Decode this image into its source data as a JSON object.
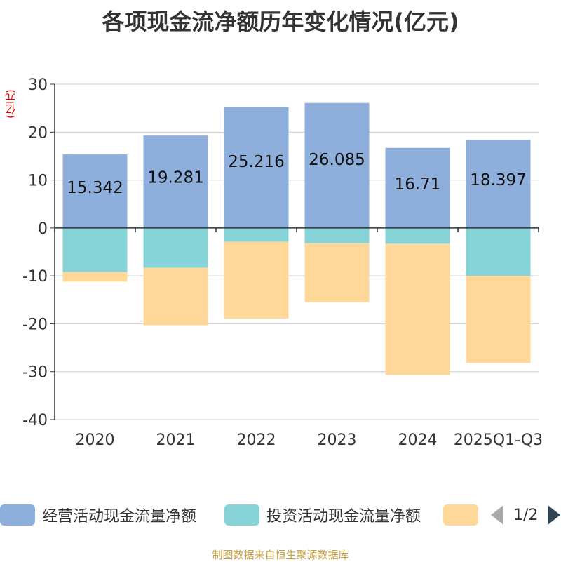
{
  "chart_data": {
    "type": "bar",
    "stacked": true,
    "title": "各项现金流净额历年变化情况(亿元)",
    "ylabel": "(亿元)",
    "ylim": [
      -40,
      30
    ],
    "yticks": [
      30,
      20,
      10,
      0,
      -10,
      -20,
      -30,
      -40
    ],
    "categories": [
      "2020",
      "2021",
      "2022",
      "2023",
      "2024",
      "2025Q1-Q3"
    ],
    "series": [
      {
        "name": "经营活动现金流量净额",
        "color": "#8eaedb",
        "values": [
          15.342,
          19.281,
          25.216,
          26.085,
          16.71,
          18.397
        ],
        "labels": [
          "15.342",
          "19.281",
          "25.216",
          "26.085",
          "16.71",
          "18.397"
        ]
      },
      {
        "name": "投资活动现金流量净额",
        "color": "#86d4d8",
        "values": [
          -9.2,
          -8.3,
          -2.9,
          -3.2,
          -3.3,
          -10.0
        ]
      },
      {
        "name": "",
        "color": "#ffd899",
        "values": [
          -2.0,
          -12.0,
          -16.0,
          -12.3,
          -27.4,
          -18.2
        ]
      }
    ],
    "grid": true
  },
  "legend": {
    "items": [
      {
        "label": "经营活动现金流量净额",
        "color": "#8eaedb"
      },
      {
        "label": "投资活动现金流量净额",
        "color": "#86d4d8"
      },
      {
        "label": "",
        "color": "#ffd899"
      }
    ],
    "page": "1/2"
  },
  "source": "制图数据来自恒生聚源数据库"
}
